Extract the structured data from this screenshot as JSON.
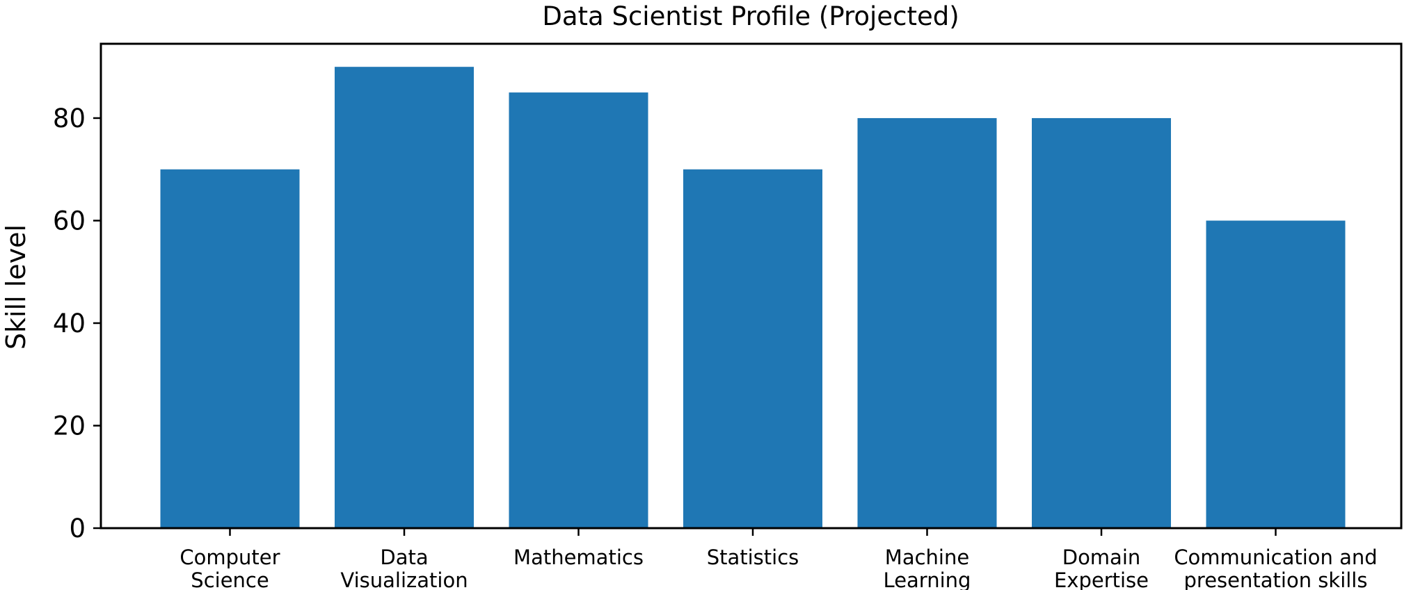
{
  "chart_data": {
    "type": "bar",
    "title": "Data Scientist Profile (Projected)",
    "xlabel": "",
    "ylabel": "Skill level",
    "categories": [
      [
        "Computer",
        "Science"
      ],
      [
        "Data",
        "Visualization"
      ],
      [
        "Mathematics"
      ],
      [
        "Statistics"
      ],
      [
        "Machine",
        "Learning"
      ],
      [
        "Domain",
        "Expertise"
      ],
      [
        "Communication and",
        "presentation skills"
      ]
    ],
    "values": [
      70,
      90,
      85,
      70,
      80,
      80,
      60
    ],
    "ylim": [
      0,
      94.5
    ],
    "yticks": [
      0,
      20,
      40,
      60,
      80
    ],
    "grid": false,
    "legend": "none",
    "bar_color": "#1f77b4"
  }
}
